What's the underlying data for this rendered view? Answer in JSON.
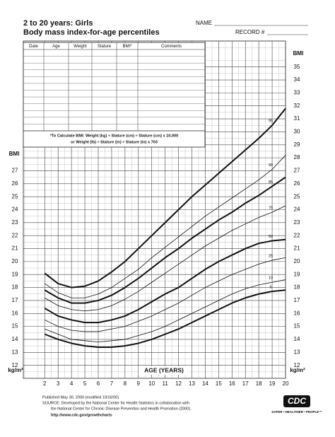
{
  "header": {
    "title": "2 to 20 years: Girls",
    "subtitle": "Body mass index-for-age percentiles",
    "name_label": "NAME",
    "record_label": "RECORD #"
  },
  "record_table": {
    "columns": [
      "Date",
      "Age",
      "Weight",
      "Stature",
      "BMI*",
      "Comments"
    ],
    "formula": [
      "*To Calculate BMI: Weight (kg) ÷ Stature (cm) ÷ Stature (cm) x 10,000",
      "or Weight (lb) ÷ Stature (in) ÷ Stature (in) x 703"
    ]
  },
  "chart_data": {
    "type": "line",
    "xlabel": "AGE (YEARS)",
    "ylabel": "BMI",
    "yunit": "kg/m²",
    "x": [
      2,
      3,
      4,
      5,
      6,
      7,
      8,
      9,
      10,
      11,
      12,
      13,
      14,
      15,
      16,
      17,
      18,
      19,
      20
    ],
    "series": [
      {
        "name": "95",
        "color": "#111111",
        "width": 2,
        "values": [
          19.1,
          18.3,
          18.0,
          18.1,
          18.5,
          19.2,
          20.0,
          21.0,
          22.0,
          23.0,
          24.0,
          25.0,
          25.9,
          26.8,
          27.7,
          28.6,
          29.5,
          30.5,
          31.8
        ]
      },
      {
        "name": "90",
        "color": "#111111",
        "width": 0.8,
        "values": [
          18.3,
          17.6,
          17.2,
          17.2,
          17.5,
          18.0,
          18.7,
          19.4,
          20.3,
          21.1,
          21.9,
          22.7,
          23.5,
          24.2,
          24.9,
          25.6,
          26.3,
          27.1,
          28.2
        ]
      },
      {
        "name": "85",
        "color": "#111111",
        "width": 2,
        "values": [
          17.8,
          17.2,
          16.8,
          16.8,
          17.0,
          17.4,
          18.0,
          18.7,
          19.5,
          20.3,
          21.0,
          21.8,
          22.5,
          23.2,
          23.8,
          24.5,
          25.1,
          25.8,
          26.5
        ]
      },
      {
        "name": "75",
        "color": "#111111",
        "width": 0.8,
        "values": [
          17.2,
          16.6,
          16.3,
          16.2,
          16.3,
          16.6,
          17.1,
          17.7,
          18.4,
          19.1,
          19.8,
          20.5,
          21.2,
          21.8,
          22.4,
          22.9,
          23.4,
          23.8,
          24.3
        ]
      },
      {
        "name": "50",
        "color": "#111111",
        "width": 2,
        "values": [
          16.4,
          15.8,
          15.5,
          15.3,
          15.3,
          15.5,
          15.8,
          16.3,
          16.9,
          17.5,
          18.0,
          18.7,
          19.4,
          20.0,
          20.5,
          21.0,
          21.4,
          21.6,
          21.7
        ]
      },
      {
        "name": "25",
        "color": "#111111",
        "width": 0.8,
        "values": [
          15.5,
          15.0,
          14.7,
          14.6,
          14.6,
          14.8,
          15.0,
          15.4,
          15.8,
          16.3,
          16.8,
          17.4,
          18.0,
          18.5,
          19.0,
          19.4,
          19.8,
          20.1,
          20.3
        ]
      },
      {
        "name": "10",
        "color": "#111111",
        "width": 0.8,
        "values": [
          14.8,
          14.4,
          14.0,
          13.9,
          13.8,
          13.9,
          14.0,
          14.3,
          14.6,
          15.0,
          15.5,
          16.0,
          16.5,
          17.0,
          17.5,
          17.9,
          18.2,
          18.4,
          18.6
        ]
      },
      {
        "name": "5",
        "color": "#111111",
        "width": 2,
        "values": [
          14.4,
          14.0,
          13.7,
          13.5,
          13.4,
          13.4,
          13.5,
          13.7,
          14.0,
          14.4,
          14.8,
          15.3,
          15.8,
          16.3,
          16.8,
          17.2,
          17.5,
          17.7,
          17.8
        ]
      }
    ],
    "xlim": [
      0.4,
      20
    ],
    "ylim": [
      11,
      37
    ],
    "xticks": [
      2,
      3,
      4,
      5,
      6,
      7,
      8,
      9,
      10,
      11,
      12,
      13,
      14,
      15,
      16,
      17,
      18,
      19,
      20
    ],
    "yticks": [
      12,
      13,
      14,
      15,
      16,
      17,
      18,
      19,
      20,
      21,
      22,
      23,
      24,
      25,
      26,
      27,
      28,
      29,
      30,
      31,
      32,
      33,
      34,
      35
    ],
    "grid": true
  },
  "footer": {
    "lines": [
      "Published May 30, 2000 (modified 10/16/00).",
      "SOURCE: Developed by the National Center for Health Statistics in collaboration with",
      "the National Center for Chronic Disease Prevention and Health Promotion (2000)."
    ],
    "url": "http://www.cdc.gov/growthcharts",
    "logo": "CDC",
    "tagline": "SAFER • HEALTHIER • PEOPLE™"
  }
}
